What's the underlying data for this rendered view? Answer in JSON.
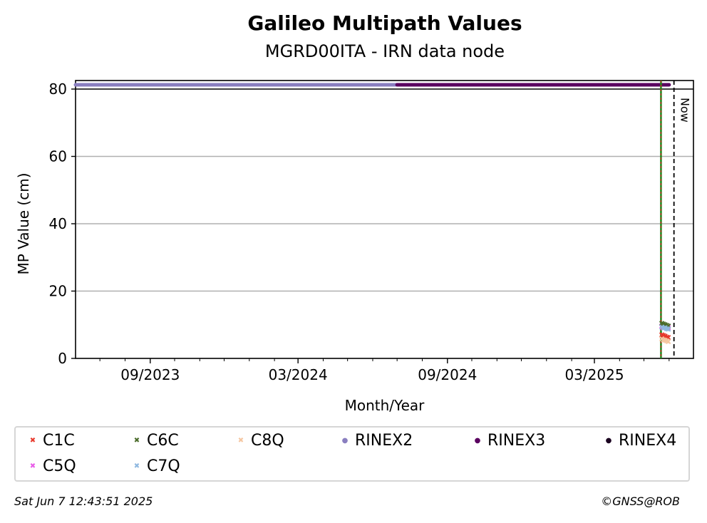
{
  "chart_data": {
    "type": "scatter",
    "title": "Galileo Multipath Values",
    "subtitle": "MGRD00ITA - IRN data node",
    "xlabel": "Month/Year",
    "ylabel": "MP Value (cm)",
    "ylim": [
      0,
      80
    ],
    "xlim": [
      "2023-06-01",
      "2025-07-01"
    ],
    "y_ticks": [
      0,
      20,
      40,
      60,
      80
    ],
    "x_ticks": [
      "09/2023",
      "03/2024",
      "09/2024",
      "03/2025"
    ],
    "grid": "horizontal",
    "now_label": "Now",
    "now_date": "2025-06-07",
    "change_date": "2025-05-22",
    "rinex_bar": [
      {
        "name": "RINEX2",
        "from": "2023-06-01",
        "to": "2024-07-01",
        "color": "#8a7fc0"
      },
      {
        "name": "RINEX3",
        "from": "2024-07-01",
        "to": "2025-06-01",
        "color": "#5a0060"
      }
    ],
    "series": [
      {
        "name": "C1C",
        "marker": "x",
        "color": "#e8392c",
        "points": [
          [
            "2025-05-23",
            7.0
          ],
          [
            "2025-05-25",
            6.8
          ],
          [
            "2025-05-27",
            6.6
          ],
          [
            "2025-05-29",
            6.3
          ],
          [
            "2025-05-31",
            6.2
          ]
        ]
      },
      {
        "name": "C5Q",
        "marker": "x",
        "color": "#e85ce8",
        "points": [
          [
            "2025-05-23",
            9.6
          ],
          [
            "2025-05-25",
            9.4
          ],
          [
            "2025-05-27",
            9.5
          ],
          [
            "2025-05-29",
            9.2
          ],
          [
            "2025-05-31",
            9.1
          ]
        ]
      },
      {
        "name": "C6C",
        "marker": "x",
        "color": "#4a6b2a",
        "points": [
          [
            "2025-05-23",
            10.4
          ],
          [
            "2025-05-25",
            10.2
          ],
          [
            "2025-05-27",
            10.0
          ],
          [
            "2025-05-29",
            9.8
          ],
          [
            "2025-05-31",
            9.6
          ]
        ]
      },
      {
        "name": "C7Q",
        "marker": "x",
        "color": "#8fb8e0",
        "points": [
          [
            "2025-05-23",
            9.3
          ],
          [
            "2025-05-25",
            9.0
          ],
          [
            "2025-05-27",
            9.1
          ],
          [
            "2025-05-29",
            8.8
          ],
          [
            "2025-05-31",
            8.7
          ]
        ]
      },
      {
        "name": "C8Q",
        "marker": "x",
        "color": "#f5c6a0",
        "points": [
          [
            "2025-05-23",
            5.8
          ],
          [
            "2025-05-25",
            5.5
          ],
          [
            "2025-05-27",
            5.4
          ],
          [
            "2025-05-29",
            5.2
          ],
          [
            "2025-05-31",
            5.0
          ]
        ]
      }
    ],
    "legend": {
      "placement": "bottom",
      "entries": [
        {
          "name": "C1C",
          "marker": "x",
          "color": "#e8392c"
        },
        {
          "name": "C6C",
          "marker": "x",
          "color": "#4a6b2a"
        },
        {
          "name": "C8Q",
          "marker": "x",
          "color": "#f5c6a0"
        },
        {
          "name": "RINEX2",
          "marker": "dot",
          "color": "#8a7fc0"
        },
        {
          "name": "RINEX3",
          "marker": "dot",
          "color": "#5a0060"
        },
        {
          "name": "RINEX4",
          "marker": "dot",
          "color": "#1a0020"
        },
        {
          "name": "C5Q",
          "marker": "x",
          "color": "#e85ce8"
        },
        {
          "name": "C7Q",
          "marker": "x",
          "color": "#8fb8e0"
        }
      ]
    }
  },
  "footer": {
    "timestamp": "Sat Jun  7 12:43:51 2025",
    "credit": "©GNSS@ROB"
  }
}
